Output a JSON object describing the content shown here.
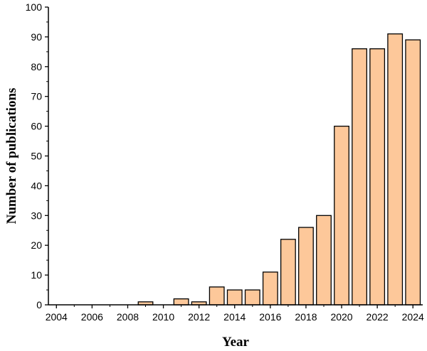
{
  "chart_data": {
    "type": "bar",
    "title": "",
    "xlabel": "Year",
    "ylabel": "Number of publications",
    "ylim": [
      0,
      100
    ],
    "yticks": [
      "0",
      "10",
      "20",
      "30",
      "40",
      "50",
      "60",
      "70",
      "80",
      "90",
      "100"
    ],
    "xticks": [
      "2004",
      "2006",
      "2008",
      "2010",
      "2012",
      "2014",
      "2016",
      "2018",
      "2020",
      "2022",
      "2024"
    ],
    "categories": [
      2004,
      2005,
      2006,
      2007,
      2008,
      2009,
      2010,
      2011,
      2012,
      2013,
      2014,
      2015,
      2016,
      2017,
      2018,
      2019,
      2020,
      2021,
      2022,
      2023,
      2024
    ],
    "values": [
      0,
      0,
      0,
      0,
      0,
      1,
      0,
      2,
      1,
      6,
      5,
      5,
      11,
      22,
      26,
      30,
      60,
      86,
      86,
      91,
      89
    ],
    "bar_color": "#FDC89A",
    "bar_edge_color": "#000000",
    "grid": false,
    "legend": "none"
  }
}
